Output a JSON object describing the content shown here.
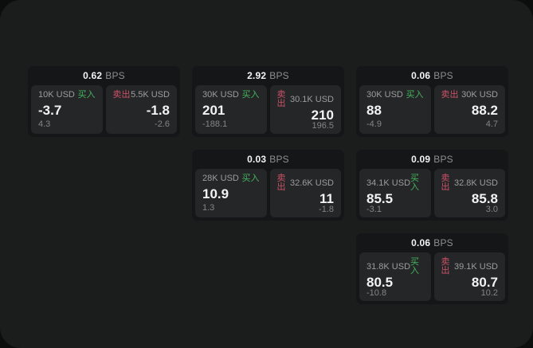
{
  "labels": {
    "bps": "BPS",
    "buy": "买入",
    "sell": "卖出"
  },
  "colors": {
    "backdrop": "#0c0d0d",
    "panel": "#1b1c1c",
    "card": "#151617",
    "tile": "#252627",
    "text_primary": "#f2f3f3",
    "text_secondary": "#9c9d9e",
    "text_muted": "#838586",
    "buy_green": "#45b35e",
    "sell_red": "#cb5268"
  },
  "cards": [
    {
      "bps": "0.62",
      "buy": {
        "amount": "10K USD",
        "value": "-3.7",
        "delta": "4.3"
      },
      "sell": {
        "amount": "5.5K USD",
        "value": "-1.8",
        "delta": "-2.6"
      }
    },
    {
      "bps": "2.92",
      "buy": {
        "amount": "30K USD",
        "value": "201",
        "delta": "-188.1"
      },
      "sell": {
        "amount": "30.1K USD",
        "value": "210",
        "delta": "196.5"
      }
    },
    {
      "bps": "0.06",
      "buy": {
        "amount": "30K USD",
        "value": "88",
        "delta": "-4.9"
      },
      "sell": {
        "amount": "30K USD",
        "value": "88.2",
        "delta": "4.7"
      }
    },
    {
      "bps": "0.03",
      "buy": {
        "amount": "28K USD",
        "value": "10.9",
        "delta": "1.3"
      },
      "sell": {
        "amount": "32.6K USD",
        "value": "11",
        "delta": "-1.8"
      }
    },
    {
      "bps": "0.09",
      "buy": {
        "amount": "34.1K USD",
        "value": "85.5",
        "delta": "-3.1"
      },
      "sell": {
        "amount": "32.8K USD",
        "value": "85.8",
        "delta": "3.0"
      }
    },
    {
      "bps": "0.06",
      "buy": {
        "amount": "31.8K USD",
        "value": "80.5",
        "delta": "-10.8"
      },
      "sell": {
        "amount": "39.1K USD",
        "value": "80.7",
        "delta": "10.2"
      }
    }
  ]
}
